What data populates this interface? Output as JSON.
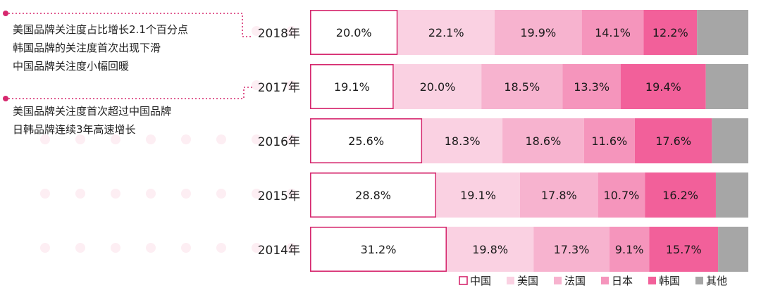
{
  "annotations": {
    "group_2018": [
      "美国品牌关注度占比增长2.1个百分点",
      "韩国品牌的关注度首次出现下滑",
      "中国品牌关注度小幅回暖"
    ],
    "group_2017": [
      "美国品牌关注度首次超过中国品牌",
      "日韩品牌连续3年高速增长"
    ]
  },
  "chart_data": {
    "type": "bar",
    "orientation": "horizontal",
    "stacked": true,
    "percent_stacked": true,
    "categories": [
      "2018年",
      "2017年",
      "2016年",
      "2015年",
      "2014年"
    ],
    "series": [
      {
        "name": "中国",
        "values": [
          20.0,
          19.1,
          25.6,
          28.8,
          31.2
        ],
        "labels": [
          "20.0%",
          "19.1%",
          "25.6%",
          "28.8%",
          "31.2%"
        ],
        "color": "#ffffff",
        "stroke": "#d6286e"
      },
      {
        "name": "美国",
        "values": [
          22.1,
          20.0,
          18.3,
          19.1,
          19.8
        ],
        "labels": [
          "22.1%",
          "20.0%",
          "18.3%",
          "19.1%",
          "19.8%"
        ],
        "color": "#fad1e2"
      },
      {
        "name": "法国",
        "values": [
          19.9,
          18.5,
          18.6,
          17.8,
          17.3
        ],
        "labels": [
          "19.9%",
          "18.5%",
          "18.6%",
          "17.8%",
          "17.3%"
        ],
        "color": "#f7b3cf"
      },
      {
        "name": "日本",
        "values": [
          14.1,
          13.3,
          11.6,
          10.7,
          9.1
        ],
        "labels": [
          "14.1%",
          "13.3%",
          "11.6%",
          "10.7%",
          "9.1%"
        ],
        "color": "#f595bc"
      },
      {
        "name": "韩国",
        "values": [
          12.2,
          19.4,
          17.6,
          16.2,
          15.7
        ],
        "labels": [
          "12.2%",
          "19.4%",
          "17.6%",
          "16.2%",
          "15.7%"
        ],
        "color": "#f2609a"
      },
      {
        "name": "其他",
        "values": [
          11.7,
          9.7,
          8.3,
          7.4,
          6.9
        ],
        "labels": [
          "",
          "",
          "",
          "",
          ""
        ],
        "color": "#a6a6a6"
      }
    ],
    "xlim": [
      0,
      100
    ],
    "legend_position": "bottom-right",
    "grid": false,
    "accent_color": "#d6286e"
  }
}
